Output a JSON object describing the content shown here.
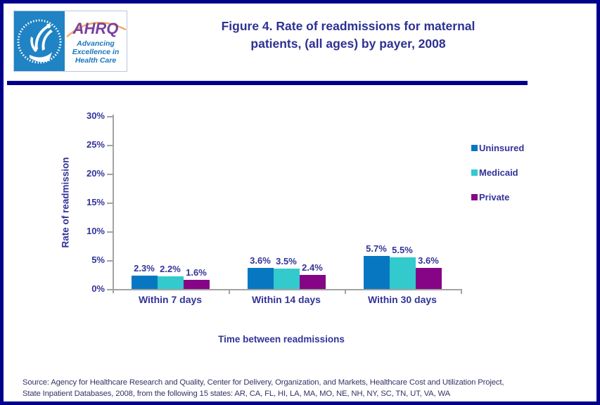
{
  "page": {
    "border_color": "#00008B",
    "accent_navy": "#333399"
  },
  "header": {
    "title_line1": "Figure 4. Rate of readmissions for maternal",
    "title_line2": "patients, (all ages) by payer, 2008",
    "logo": {
      "ahrq_text": "AHRQ",
      "tagline_line1": "Advancing",
      "tagline_line2": "Excellence in",
      "tagline_line3": "Health Care"
    }
  },
  "chart_data": {
    "type": "bar",
    "title": "Figure 4. Rate of readmissions for maternal patients, (all ages) by payer, 2008",
    "categories": [
      "Within 7 days",
      "Within 14 days",
      "Within 30 days"
    ],
    "series": [
      {
        "name": "Uninsured",
        "color": "#0877C2",
        "values": [
          2.3,
          3.6,
          5.7
        ]
      },
      {
        "name": "Medicaid",
        "color": "#33CACD",
        "values": [
          2.2,
          3.5,
          5.5
        ]
      },
      {
        "name": "Private",
        "color": "#850586",
        "values": [
          1.6,
          2.4,
          3.6
        ]
      }
    ],
    "value_labels": [
      [
        "2.3%",
        "2.2%",
        "1.6%"
      ],
      [
        "3.6%",
        "3.5%",
        "2.4%"
      ],
      [
        "5.7%",
        "5.5%",
        "3.6%"
      ]
    ],
    "xlabel": "Time between readmissions",
    "ylabel": "Rate of readmission",
    "ylim": [
      0,
      30
    ],
    "ytick_step": 5,
    "ytick_labels": [
      "0%",
      "5%",
      "10%",
      "15%",
      "20%",
      "25%",
      "30%"
    ],
    "grid": false,
    "legend_position": "right"
  },
  "source": {
    "line1": "Source: Agency for Healthcare Research and Quality, Center for Delivery, Organization, and Markets, Healthcare Cost and Utilization Project,",
    "line2": "State Inpatient Databases, 2008, from the following 15 states: AR, CA, FL, HI, LA, MA, MO, NE, NH, NY, SC, TN, UT, VA, WA"
  }
}
